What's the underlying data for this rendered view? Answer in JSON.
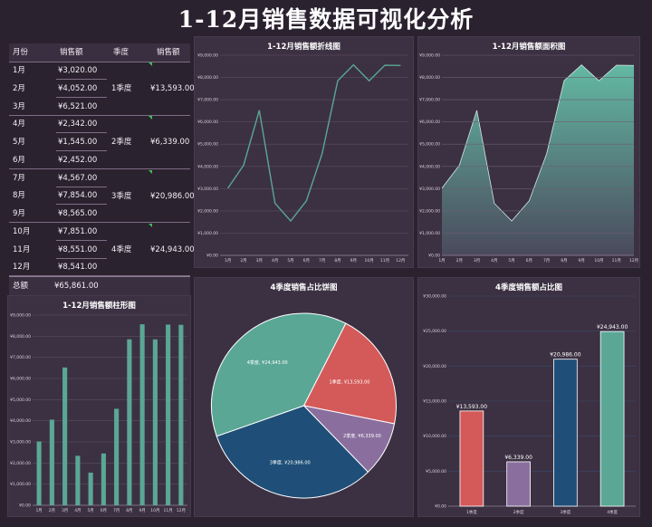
{
  "page_title": "1-12月销售数据可视化分析",
  "table": {
    "headers": [
      "月份",
      "销售额",
      "季度",
      "销售额"
    ],
    "months": [
      "1月",
      "2月",
      "3月",
      "4月",
      "5月",
      "6月",
      "7月",
      "8月",
      "9月",
      "10月",
      "11月",
      "12月"
    ],
    "sales": [
      "¥3,020.00",
      "¥4,052.00",
      "¥6,521.00",
      "¥2,342.00",
      "¥1,545.00",
      "¥2,452.00",
      "¥4,567.00",
      "¥7,854.00",
      "¥8,565.00",
      "¥7,851.00",
      "¥8,551.00",
      "¥8,541.00"
    ],
    "quarters": [
      "1季度",
      "2季度",
      "3季度",
      "4季度"
    ],
    "quarter_sales": [
      "¥13,593.00",
      "¥6,339.00",
      "¥20,986.00",
      "¥24,943.00"
    ],
    "total_label": "总额",
    "total_value": "¥65,861.00"
  },
  "colors": {
    "teal": "#5aa795",
    "red": "#d45a5a",
    "purple": "#8a6f9e",
    "blue": "#1f4f78",
    "background": "#2b2230",
    "panel": "#3c3142"
  },
  "chart_data": [
    {
      "type": "line",
      "title": "1-12月销售额折线图",
      "categories": [
        "1月",
        "2月",
        "3月",
        "4月",
        "5月",
        "6月",
        "7月",
        "8月",
        "9月",
        "10月",
        "11月",
        "12月"
      ],
      "values": [
        3020,
        4052,
        6521,
        2342,
        1545,
        2452,
        4567,
        7854,
        8565,
        7851,
        8551,
        8541
      ],
      "ylim": [
        0,
        9000
      ],
      "ytick_labels": [
        "¥0.00",
        "¥1,000.00",
        "¥2,000.00",
        "¥3,000.00",
        "¥4,000.00",
        "¥5,000.00",
        "¥6,000.00",
        "¥7,000.00",
        "¥8,000.00",
        "¥9,000.00"
      ]
    },
    {
      "type": "area",
      "title": "1-12月销售额面积图",
      "categories": [
        "1月",
        "2月",
        "3月",
        "4月",
        "5月",
        "6月",
        "7月",
        "8月",
        "9月",
        "10月",
        "11月",
        "12月"
      ],
      "values": [
        3020,
        4052,
        6521,
        2342,
        1545,
        2452,
        4567,
        7854,
        8565,
        7851,
        8551,
        8541
      ],
      "ylim": [
        0,
        9000
      ],
      "ytick_labels": [
        "¥0.00",
        "¥1,000.00",
        "¥2,000.00",
        "¥3,000.00",
        "¥4,000.00",
        "¥5,000.00",
        "¥6,000.00",
        "¥7,000.00",
        "¥8,000.00",
        "¥9,000.00"
      ]
    },
    {
      "type": "bar",
      "title": "1-12月销售额柱形图",
      "categories": [
        "1月",
        "2月",
        "3月",
        "4月",
        "5月",
        "6月",
        "7月",
        "8月",
        "9月",
        "10月",
        "11月",
        "12月"
      ],
      "values": [
        3020,
        4052,
        6521,
        2342,
        1545,
        2452,
        4567,
        7854,
        8565,
        7851,
        8551,
        8541
      ],
      "ylim": [
        0,
        9000
      ],
      "ytick_labels": [
        "¥0.00",
        "¥1,000.00",
        "¥2,000.00",
        "¥3,000.00",
        "¥4,000.00",
        "¥5,000.00",
        "¥6,000.00",
        "¥7,000.00",
        "¥8,000.00",
        "¥9,000.00"
      ]
    },
    {
      "type": "pie",
      "title": "4季度销售占比饼图",
      "categories": [
        "1季度",
        "2季度",
        "3季度",
        "4季度"
      ],
      "values": [
        13593,
        6339,
        20986,
        24943
      ],
      "labels": [
        "1季度, ¥13,593.00",
        "2季度, ¥6,339.00",
        "3季度, ¥20,986.00",
        "4季度, ¥24,943.00"
      ]
    },
    {
      "type": "bar",
      "title": "4季度销售额占比图",
      "categories": [
        "1季度",
        "2季度",
        "3季度",
        "4季度"
      ],
      "values": [
        13593,
        6339,
        20986,
        24943
      ],
      "data_labels": [
        "¥13,593.00",
        "¥6,339.00",
        "¥20,986.00",
        "¥24,943.00"
      ],
      "ylim": [
        0,
        30000
      ],
      "ytick_labels": [
        "¥0.00",
        "¥5,000.00",
        "¥10,000.00",
        "¥15,000.00",
        "¥20,000.00",
        "¥25,000.00",
        "¥30,000.00"
      ]
    }
  ]
}
